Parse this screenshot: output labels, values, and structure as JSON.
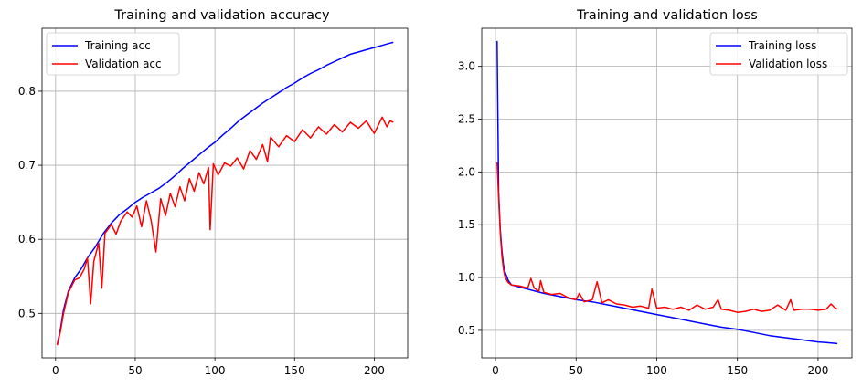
{
  "chart_data": [
    {
      "type": "line",
      "title": "Training and validation accuracy",
      "xlabel": "",
      "ylabel": "",
      "xlim": [
        -8.5,
        221
      ],
      "ylim": [
        0.44,
        0.885
      ],
      "xticks": [
        0,
        50,
        100,
        150,
        200
      ],
      "yticks": [
        0.5,
        0.6,
        0.7,
        0.8
      ],
      "ytick_labels": [
        "0.5",
        "0.6",
        "0.7",
        "0.8"
      ],
      "grid": true,
      "legend_position": "upper left",
      "series": [
        {
          "name": "Training acc",
          "color": "#0000ff",
          "points": [
            [
              1,
              0.458
            ],
            [
              3,
              0.478
            ],
            [
              5,
              0.505
            ],
            [
              8,
              0.53
            ],
            [
              12,
              0.548
            ],
            [
              16,
              0.56
            ],
            [
              20,
              0.575
            ],
            [
              25,
              0.59
            ],
            [
              30,
              0.608
            ],
            [
              35,
              0.622
            ],
            [
              40,
              0.633
            ],
            [
              45,
              0.641
            ],
            [
              50,
              0.65
            ],
            [
              55,
              0.657
            ],
            [
              60,
              0.663
            ],
            [
              65,
              0.669
            ],
            [
              70,
              0.677
            ],
            [
              75,
              0.686
            ],
            [
              80,
              0.696
            ],
            [
              85,
              0.705
            ],
            [
              90,
              0.714
            ],
            [
              95,
              0.723
            ],
            [
              100,
              0.731
            ],
            [
              105,
              0.741
            ],
            [
              110,
              0.75
            ],
            [
              115,
              0.76
            ],
            [
              120,
              0.768
            ],
            [
              125,
              0.776
            ],
            [
              130,
              0.784
            ],
            [
              135,
              0.791
            ],
            [
              140,
              0.798
            ],
            [
              145,
              0.805
            ],
            [
              150,
              0.811
            ],
            [
              155,
              0.818
            ],
            [
              160,
              0.824
            ],
            [
              165,
              0.829
            ],
            [
              170,
              0.835
            ],
            [
              175,
              0.84
            ],
            [
              180,
              0.845
            ],
            [
              185,
              0.85
            ],
            [
              190,
              0.853
            ],
            [
              195,
              0.856
            ],
            [
              200,
              0.859
            ],
            [
              205,
              0.862
            ],
            [
              210,
              0.865
            ],
            [
              212,
              0.866
            ]
          ]
        },
        {
          "name": "Validation acc",
          "color": "#ff0000",
          "points": [
            [
              1,
              0.457
            ],
            [
              3,
              0.475
            ],
            [
              5,
              0.5
            ],
            [
              8,
              0.528
            ],
            [
              12,
              0.545
            ],
            [
              15,
              0.548
            ],
            [
              18,
              0.56
            ],
            [
              20,
              0.575
            ],
            [
              22,
              0.513
            ],
            [
              24,
              0.57
            ],
            [
              27,
              0.595
            ],
            [
              29,
              0.534
            ],
            [
              31,
              0.608
            ],
            [
              35,
              0.62
            ],
            [
              38,
              0.607
            ],
            [
              41,
              0.625
            ],
            [
              45,
              0.637
            ],
            [
              48,
              0.63
            ],
            [
              51,
              0.645
            ],
            [
              54,
              0.617
            ],
            [
              57,
              0.652
            ],
            [
              60,
              0.625
            ],
            [
              63,
              0.583
            ],
            [
              66,
              0.655
            ],
            [
              69,
              0.632
            ],
            [
              72,
              0.662
            ],
            [
              75,
              0.644
            ],
            [
              78,
              0.671
            ],
            [
              81,
              0.652
            ],
            [
              84,
              0.682
            ],
            [
              87,
              0.665
            ],
            [
              90,
              0.69
            ],
            [
              93,
              0.675
            ],
            [
              96,
              0.697
            ],
            [
              97,
              0.613
            ],
            [
              99,
              0.702
            ],
            [
              102,
              0.687
            ],
            [
              106,
              0.703
            ],
            [
              110,
              0.699
            ],
            [
              114,
              0.71
            ],
            [
              118,
              0.695
            ],
            [
              122,
              0.72
            ],
            [
              126,
              0.708
            ],
            [
              130,
              0.728
            ],
            [
              133,
              0.705
            ],
            [
              135,
              0.738
            ],
            [
              140,
              0.725
            ],
            [
              145,
              0.74
            ],
            [
              150,
              0.732
            ],
            [
              155,
              0.748
            ],
            [
              160,
              0.737
            ],
            [
              165,
              0.752
            ],
            [
              170,
              0.742
            ],
            [
              175,
              0.755
            ],
            [
              180,
              0.745
            ],
            [
              185,
              0.758
            ],
            [
              190,
              0.75
            ],
            [
              195,
              0.76
            ],
            [
              200,
              0.743
            ],
            [
              205,
              0.765
            ],
            [
              208,
              0.752
            ],
            [
              210,
              0.76
            ],
            [
              212,
              0.758
            ]
          ]
        }
      ]
    },
    {
      "type": "line",
      "title": "Training and validation loss",
      "xlabel": "",
      "ylabel": "",
      "xlim": [
        -8.5,
        221
      ],
      "ylim": [
        0.24,
        3.36
      ],
      "xticks": [
        0,
        50,
        100,
        150,
        200
      ],
      "yticks": [
        0.5,
        1.0,
        1.5,
        2.0,
        2.5,
        3.0
      ],
      "ytick_labels": [
        "0.5",
        "1.0",
        "1.5",
        "2.0",
        "2.5",
        "3.0"
      ],
      "grid": true,
      "legend_position": "upper right",
      "series": [
        {
          "name": "Training loss",
          "color": "#0000ff",
          "points": [
            [
              1,
              3.24
            ],
            [
              2,
              1.8
            ],
            [
              3,
              1.45
            ],
            [
              4,
              1.25
            ],
            [
              5,
              1.12
            ],
            [
              6,
              1.05
            ],
            [
              8,
              0.97
            ],
            [
              10,
              0.93
            ],
            [
              15,
              0.91
            ],
            [
              20,
              0.89
            ],
            [
              25,
              0.87
            ],
            [
              30,
              0.85
            ],
            [
              40,
              0.82
            ],
            [
              50,
              0.79
            ],
            [
              60,
              0.77
            ],
            [
              70,
              0.74
            ],
            [
              80,
              0.71
            ],
            [
              90,
              0.68
            ],
            [
              100,
              0.65
            ],
            [
              110,
              0.62
            ],
            [
              120,
              0.59
            ],
            [
              130,
              0.56
            ],
            [
              140,
              0.53
            ],
            [
              150,
              0.51
            ],
            [
              160,
              0.48
            ],
            [
              170,
              0.45
            ],
            [
              180,
              0.43
            ],
            [
              190,
              0.41
            ],
            [
              200,
              0.39
            ],
            [
              205,
              0.385
            ],
            [
              212,
              0.375
            ]
          ]
        },
        {
          "name": "Validation loss",
          "color": "#ff0000",
          "points": [
            [
              1,
              2.09
            ],
            [
              2,
              1.75
            ],
            [
              3,
              1.42
            ],
            [
              4,
              1.2
            ],
            [
              5,
              1.08
            ],
            [
              6,
              1.0
            ],
            [
              8,
              0.95
            ],
            [
              10,
              0.93
            ],
            [
              15,
              0.92
            ],
            [
              20,
              0.9
            ],
            [
              22,
              0.99
            ],
            [
              24,
              0.9
            ],
            [
              27,
              0.87
            ],
            [
              28,
              0.97
            ],
            [
              30,
              0.86
            ],
            [
              35,
              0.84
            ],
            [
              40,
              0.85
            ],
            [
              45,
              0.81
            ],
            [
              50,
              0.79
            ],
            [
              52,
              0.85
            ],
            [
              55,
              0.77
            ],
            [
              60,
              0.79
            ],
            [
              63,
              0.96
            ],
            [
              66,
              0.76
            ],
            [
              70,
              0.79
            ],
            [
              75,
              0.75
            ],
            [
              80,
              0.74
            ],
            [
              85,
              0.72
            ],
            [
              90,
              0.73
            ],
            [
              95,
              0.71
            ],
            [
              97,
              0.89
            ],
            [
              100,
              0.71
            ],
            [
              105,
              0.72
            ],
            [
              110,
              0.7
            ],
            [
              115,
              0.72
            ],
            [
              120,
              0.69
            ],
            [
              125,
              0.74
            ],
            [
              130,
              0.7
            ],
            [
              135,
              0.72
            ],
            [
              138,
              0.79
            ],
            [
              140,
              0.7
            ],
            [
              145,
              0.69
            ],
            [
              150,
              0.67
            ],
            [
              155,
              0.68
            ],
            [
              160,
              0.7
            ],
            [
              165,
              0.68
            ],
            [
              170,
              0.69
            ],
            [
              175,
              0.74
            ],
            [
              180,
              0.69
            ],
            [
              183,
              0.79
            ],
            [
              185,
              0.69
            ],
            [
              190,
              0.7
            ],
            [
              195,
              0.7
            ],
            [
              200,
              0.69
            ],
            [
              205,
              0.7
            ],
            [
              208,
              0.75
            ],
            [
              210,
              0.72
            ],
            [
              212,
              0.7
            ]
          ]
        }
      ]
    }
  ]
}
